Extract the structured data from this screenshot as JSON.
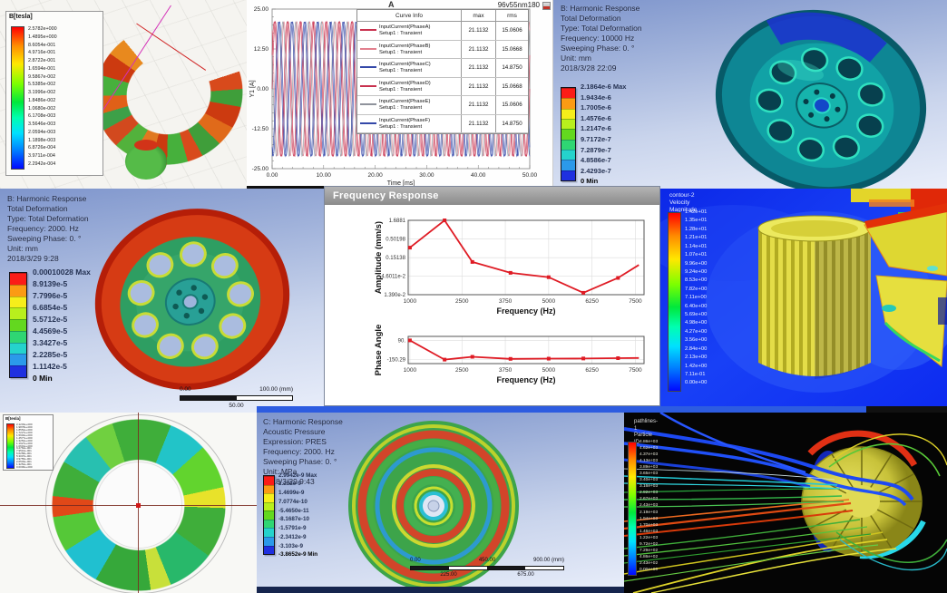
{
  "ansys_band_colors": [
    "#fb1c17",
    "#fb9b14",
    "#f6ee1b",
    "#b8ef1d",
    "#63d81f",
    "#2fd673",
    "#25d3cc",
    "#2b99ea",
    "#1f30e0"
  ],
  "panels": {
    "flux_segment": {
      "legend_title": "B[tesla]",
      "values": [
        "2.5782e+000",
        "1.4895e+000",
        "8.6054e-001",
        "4.9716e-001",
        "2.8722e-001",
        "1.6594e-001",
        "9.5867e-002",
        "5.5385e-002",
        "3.1996e-002",
        "1.8486e-002",
        "1.0680e-002",
        "6.1708e-003",
        "3.5646e-003",
        "2.0594e-003",
        "1.1898e-003",
        "6.8726e-004",
        "3.9711e-004",
        "2.2942e-004"
      ]
    },
    "current_plot": {
      "corner_label": "A",
      "title": "96v55nm180",
      "legend": {
        "col_info": "Curve Info",
        "col_max": "max",
        "col_rms": "rms",
        "rows": [
          {
            "name": "InputCurrent(PhaseA)",
            "setup": "Setup1 : Transient",
            "max": "21.1132",
            "rms": "15.0606",
            "color": "#c8314e"
          },
          {
            "name": "InputCurrent(PhaseB)",
            "setup": "Setup1 : Transient",
            "max": "21.1132",
            "rms": "15.0668",
            "color": "#e2808e"
          },
          {
            "name": "InputCurrent(PhaseC)",
            "setup": "Setup1 : Transient",
            "max": "21.1132",
            "rms": "14.8750",
            "color": "#3448a8"
          },
          {
            "name": "InputCurrent(PhaseD)",
            "setup": "Setup1 : Transient",
            "max": "21.1132",
            "rms": "15.0668",
            "color": "#c8314e"
          },
          {
            "name": "InputCurrent(PhaseE)",
            "setup": "Setup1 : Transient",
            "max": "21.1132",
            "rms": "15.0606",
            "color": "#8f939c"
          },
          {
            "name": "InputCurrent(PhaseF)",
            "setup": "Setup1 : Transient",
            "max": "21.1132",
            "rms": "14.8750",
            "color": "#3448a8"
          }
        ]
      }
    },
    "harmonic_10000": {
      "header_lines": [
        "B: Harmonic Response",
        "Total Deformation",
        "Type: Total Deformation",
        "Frequency: 10000 Hz",
        "Sweeping Phase: 0. °",
        "Unit: mm",
        "2018/3/28 22:09"
      ],
      "legend_labels": [
        "2.1864e-6 Max",
        "1.9434e-6",
        "1.7005e-6",
        "1.4576e-6",
        "1.2147e-6",
        "9.7172e-7",
        "7.2879e-7",
        "4.8586e-7",
        "2.4293e-7",
        "0 Min"
      ]
    },
    "harmonic_2000": {
      "header_lines": [
        "B: Harmonic Response",
        "Total Deformation",
        "Type: Total Deformation",
        "Frequency: 2000. Hz",
        "Sweeping Phase: 0. °",
        "Unit: mm",
        "2018/3/29 9:28"
      ],
      "legend_labels": [
        "0.00010028 Max",
        "8.9139e-5",
        "7.7996e-5",
        "6.6854e-5",
        "5.5712e-5",
        "4.4569e-5",
        "3.3427e-5",
        "2.2285e-5",
        "1.1142e-5",
        "0 Min"
      ],
      "scale_bar": {
        "left": "0.00",
        "right": "100.00 (mm)",
        "mid": "50.00"
      }
    },
    "freq_response": {
      "window_title": "Frequency Response"
    },
    "velocity_contour": {
      "header_lines": [
        "contour-2",
        "Velocity Magnitude"
      ],
      "values": [
        "1.42e+01",
        "1.35e+01",
        "1.28e+01",
        "1.21e+01",
        "1.14e+01",
        "1.07e+01",
        "9.96e+00",
        "9.24e+00",
        "8.53e+00",
        "7.82e+00",
        "7.11e+00",
        "6.40e+00",
        "5.69e+00",
        "4.98e+00",
        "4.27e+00",
        "3.56e+00",
        "2.84e+00",
        "2.13e+00",
        "1.42e+00",
        "7.11e-01",
        "0.00e+00"
      ]
    },
    "flux_full": {
      "legend_title": "B[tesla]",
      "values": [
        "2.1203e+000",
        "1.9878e+000",
        "1.8552e+000",
        "1.7227e+000",
        "1.5902e+000",
        "1.4577e+000",
        "1.3252e+000",
        "1.1927e+000",
        "1.0601e+000",
        "9.2762e-001",
        "7.9510e-001",
        "6.6258e-001",
        "5.3007e-001",
        "3.9755e-001",
        "2.6503e-001",
        "1.3252e-001",
        "0.0000e+000"
      ]
    },
    "acoustic": {
      "header_lines": [
        "C: Harmonic Response",
        "Acoustic Pressure",
        "Expression: PRES",
        "Frequency: 2000. Hz",
        "Sweeping Phase: 0. °",
        "Unit: MPa",
        "2018/3/29 9:43"
      ],
      "legend_labels": [
        "2.9942e-9 Max",
        "2.232e-9",
        "1.4699e-9",
        "7.0774e-10",
        "-5.4650e-11",
        "-8.1687e-10",
        "-1.5791e-9",
        "-2.3412e-9",
        "-3.103e-9",
        "-3.8652e-9 Min"
      ],
      "scale_bar": {
        "left": "0.00",
        "mid": "450.00",
        "right": "900.00 (mm)",
        "lower1": "225.00",
        "lower2": "675.00"
      }
    },
    "pathlines": {
      "header_lines": [
        "pathlines-1",
        "Particle ID"
      ],
      "values": [
        "4.86e+03",
        "4.62e+03",
        "4.37e+03",
        "4.13e+03",
        "3.89e+03",
        "3.65e+03",
        "3.40e+03",
        "3.16e+03",
        "2.92e+03",
        "2.67e+03",
        "2.43e+03",
        "2.19e+03",
        "1.94e+03",
        "1.70e+03",
        "1.46e+03",
        "1.22e+03",
        "9.72e+02",
        "7.29e+02",
        "4.86e+02",
        "2.43e+02",
        "0.00e+00"
      ]
    }
  },
  "chart_data": [
    {
      "id": "input_current",
      "type": "line",
      "title": "96v55nm180",
      "xlabel": "Time [ms]",
      "ylabel": "Y1 [A]",
      "xlim": [
        0,
        50
      ],
      "ylim": [
        -25,
        25
      ],
      "x_ticks": [
        "0.00",
        "10.00",
        "20.00",
        "30.00",
        "40.00",
        "50.00"
      ],
      "y_ticks": [
        "25.00",
        "12.50",
        "0.00",
        "-12.50",
        "-25.00"
      ],
      "grid": false,
      "waveform": {
        "amplitude": 21.1132,
        "period_ms": 2.5
      },
      "series": [
        {
          "name": "InputCurrent(PhaseA)",
          "phase_deg": 0,
          "color": "#c8314e",
          "max": 21.1132,
          "rms": 15.0606
        },
        {
          "name": "InputCurrent(PhaseB)",
          "phase_deg": 120,
          "color": "#e2808e",
          "max": 21.1132,
          "rms": 15.0668
        },
        {
          "name": "InputCurrent(PhaseC)",
          "phase_deg": 240,
          "color": "#3448a8",
          "max": 21.1132,
          "rms": 14.875
        },
        {
          "name": "InputCurrent(PhaseD)",
          "phase_deg": 30,
          "color": "#c8314e",
          "max": 21.1132,
          "rms": 15.0668
        },
        {
          "name": "InputCurrent(PhaseE)",
          "phase_deg": 150,
          "color": "#8f939c",
          "max": 21.1132,
          "rms": 15.0606
        },
        {
          "name": "InputCurrent(PhaseF)",
          "phase_deg": 270,
          "color": "#3448a8",
          "max": 21.1132,
          "rms": 14.875
        }
      ]
    },
    {
      "id": "freq_amplitude",
      "type": "line",
      "title": "Frequency Response",
      "xlabel": "Frequency (Hz)",
      "ylabel": "Amplitude (mm/s)",
      "y_scale": "log",
      "y_ticks": [
        "1.6881",
        "0.50198",
        "0.15138",
        "4.6011e-2",
        "1.390e-2"
      ],
      "x_ticks": [
        1000,
        2500,
        3750,
        5000,
        6250,
        7500
      ],
      "xlim": [
        950,
        7750
      ],
      "points": [
        [
          1000,
          0.29
        ],
        [
          2000,
          1.6881
        ],
        [
          2800,
          0.115
        ],
        [
          3900,
          0.057
        ],
        [
          5000,
          0.043
        ],
        [
          6000,
          0.0157
        ],
        [
          7000,
          0.041
        ],
        [
          7600,
          0.095
        ]
      ],
      "color": "#df1b24",
      "marker": "square",
      "last_no_marker": true,
      "grid": true,
      "legend_position": "none"
    },
    {
      "id": "freq_phase",
      "type": "line",
      "xlabel": "Frequency (Hz)",
      "ylabel": "Phase Angle",
      "ylim": [
        -200,
        140
      ],
      "y_ticks": [
        "90.",
        "-150.29"
      ],
      "x_ticks": [
        1000,
        2500,
        3750,
        5000,
        6250,
        7500
      ],
      "xlim": [
        950,
        7750
      ],
      "points": [
        [
          1000,
          90
        ],
        [
          2000,
          -150.29
        ],
        [
          2800,
          -115
        ],
        [
          3900,
          -141
        ],
        [
          5000,
          -138
        ],
        [
          6000,
          -136
        ],
        [
          7000,
          -132
        ],
        [
          7600,
          -130
        ]
      ],
      "color": "#df1b24",
      "marker": "square",
      "last_no_marker": true,
      "grid": false
    }
  ]
}
